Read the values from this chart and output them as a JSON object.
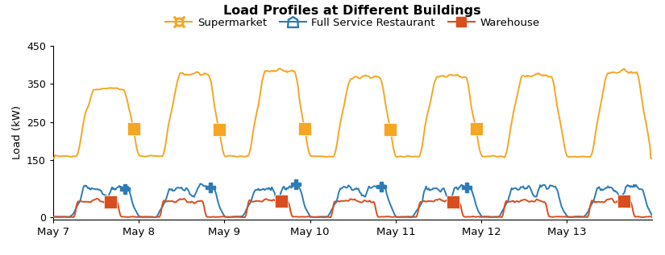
{
  "title": "Load Profiles at Different Buildings",
  "ylabel": "Load (kW)",
  "ylim": [
    -5,
    450
  ],
  "yticks": [
    0,
    150,
    250,
    350,
    450
  ],
  "colors": {
    "supermarket": "#F5A623",
    "restaurant": "#2C7BB6",
    "warehouse": "#D94E1F"
  },
  "x_tick_labels": [
    "May 7",
    "May 8",
    "May 9",
    "May 10",
    "May 11",
    "May 12",
    "May 13"
  ],
  "x_tick_positions": [
    0,
    96,
    192,
    288,
    384,
    480,
    576
  ],
  "total_points": 672,
  "background_color": "#ffffff",
  "legend_labels": [
    "Supermarket",
    "Full Service Restaurant",
    "Warehouse"
  ],
  "figsize": [
    8.25,
    3.17
  ],
  "dpi": 100
}
